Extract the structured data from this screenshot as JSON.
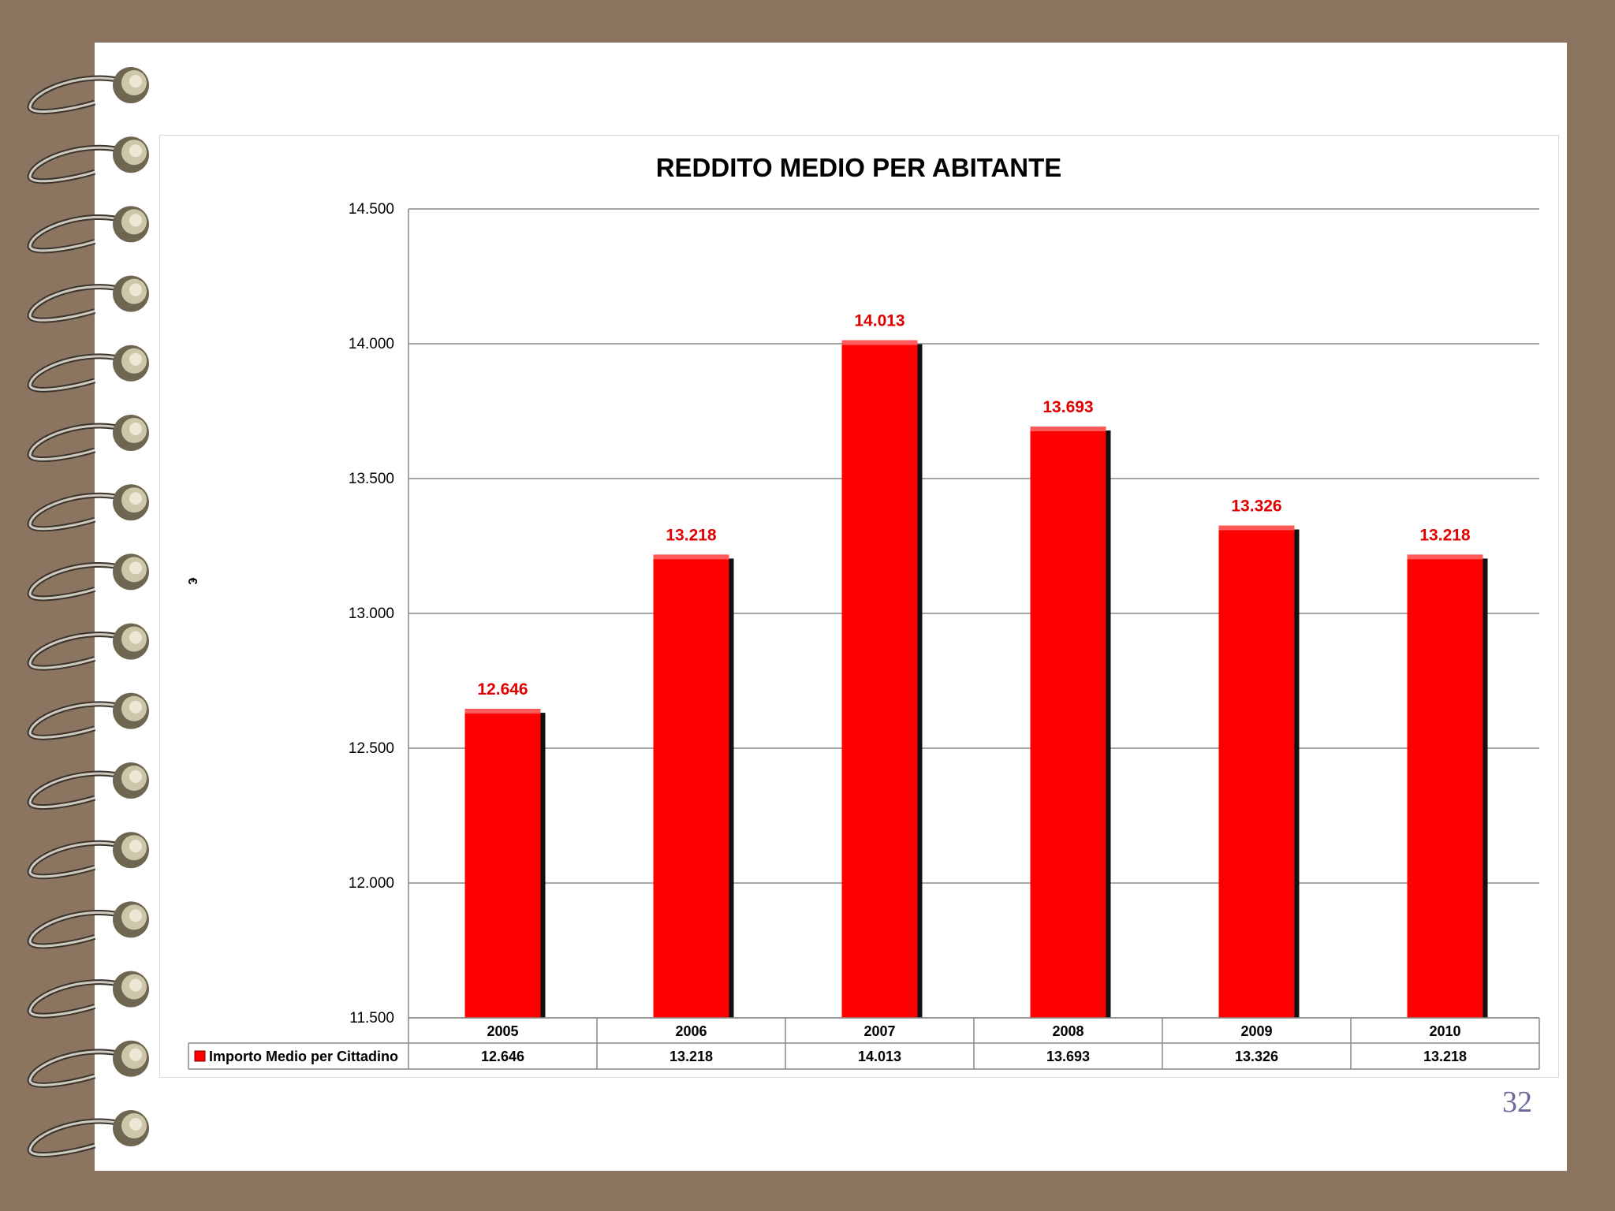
{
  "slide": {
    "page_number": "32"
  },
  "colors": {
    "bar": "#ff0000",
    "bar_shadow": "#111111",
    "label": "#e00000",
    "grid": "#888888"
  },
  "chart_data": {
    "type": "bar",
    "title": "REDDITO  MEDIO PER  ABITANTE",
    "ylabel": "€",
    "xlabel": "",
    "categories": [
      "2005",
      "2006",
      "2007",
      "2008",
      "2009",
      "2010"
    ],
    "series": [
      {
        "name": "Importo Medio per Cittadino",
        "values": [
          12646,
          13218,
          14013,
          13693,
          13326,
          13218
        ]
      }
    ],
    "data_labels": [
      "12.646",
      "13.218",
      "14.013",
      "13.693",
      "13.326",
      "13.218"
    ],
    "ylim": [
      11500,
      14500
    ],
    "yticks": [
      11500,
      12000,
      12500,
      13000,
      13500,
      14000,
      14500
    ],
    "ytick_labels": [
      "11.500",
      "12.000",
      "12.500",
      "13.000",
      "13.500",
      "14.000",
      "14.500"
    ],
    "grid": true,
    "legend": "data-table-bottom"
  }
}
